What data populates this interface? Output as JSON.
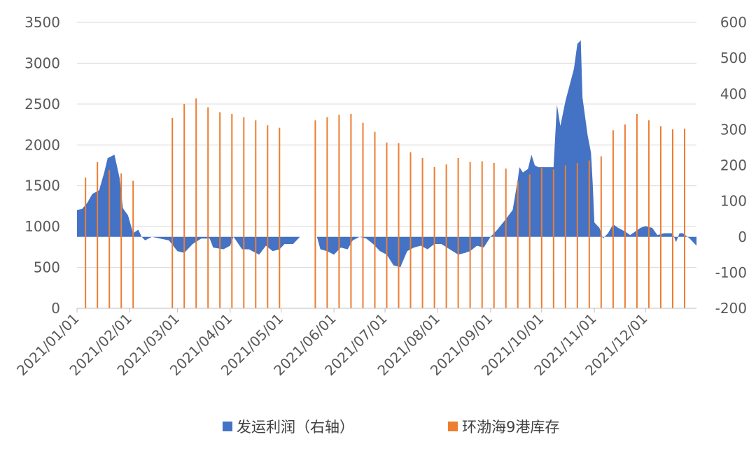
{
  "chart_data": {
    "type": "bar",
    "title": "",
    "xlabel": "",
    "ylabel": "",
    "grid": true,
    "legend_position": "bottom",
    "x_range": [
      "2021-01-01",
      "2021-12-31"
    ],
    "left_axis": {
      "ylim": [
        0,
        3500
      ],
      "ticks": [
        "0",
        "500",
        "1000",
        "1500",
        "2000",
        "2500",
        "3000",
        "3500"
      ]
    },
    "right_axis": {
      "ylim": [
        -200,
        600
      ],
      "ticks": [
        "-200",
        "-100",
        "0",
        "100",
        "200",
        "300",
        "400",
        "500",
        "600"
      ]
    },
    "x_ticks": [
      "2021/01/01",
      "2021/02/01",
      "2021/03/01",
      "2021/04/01",
      "2021/05/01",
      "2021/06/01",
      "2021/07/01",
      "2021/08/01",
      "2021/09/01",
      "2021/10/01",
      "2021/11/01",
      "2021/12/01"
    ],
    "series": [
      {
        "name": "发运利润（右轴）",
        "type": "area",
        "axis": "right",
        "color": "#4472C4",
        "points": [
          [
            "2021-01-01",
            75
          ],
          [
            "2021-01-04",
            78
          ],
          [
            "2021-01-07",
            95
          ],
          [
            "2021-01-10",
            120
          ],
          [
            "2021-01-14",
            130
          ],
          [
            "2021-01-17",
            180
          ],
          [
            "2021-01-19",
            220
          ],
          [
            "2021-01-23",
            230
          ],
          [
            "2021-01-26",
            165
          ],
          [
            "2021-01-28",
            80
          ],
          [
            "2021-01-31",
            60
          ],
          [
            "2021-02-03",
            10
          ],
          [
            "2021-02-06",
            20
          ],
          [
            "2021-02-08",
            0
          ],
          [
            "2021-02-10",
            -10
          ],
          [
            "2021-02-12",
            -5
          ],
          [
            "2021-02-14",
            0
          ],
          [
            "2021-02-24",
            -10
          ],
          [
            "2021-03-01",
            -40
          ],
          [
            "2021-03-05",
            -45
          ],
          [
            "2021-03-10",
            -20
          ],
          [
            "2021-03-15",
            -5
          ],
          [
            "2021-03-20",
            -5
          ],
          [
            "2021-03-22",
            -30
          ],
          [
            "2021-03-28",
            -35
          ],
          [
            "2021-04-01",
            -25
          ],
          [
            "2021-04-03",
            0
          ],
          [
            "2021-04-08",
            -35
          ],
          [
            "2021-04-12",
            -35
          ],
          [
            "2021-04-18",
            -50
          ],
          [
            "2021-04-22",
            -25
          ],
          [
            "2021-04-26",
            -40
          ],
          [
            "2021-04-30",
            -35
          ],
          [
            "2021-05-03",
            -20
          ],
          [
            "2021-05-08",
            -20
          ],
          [
            "2021-05-12",
            0
          ],
          [
            "2021-05-22",
            0
          ],
          [
            "2021-05-24",
            -35
          ],
          [
            "2021-05-28",
            -40
          ],
          [
            "2021-06-01",
            -50
          ],
          [
            "2021-06-05",
            -30
          ],
          [
            "2021-06-09",
            -35
          ],
          [
            "2021-06-12",
            -10
          ],
          [
            "2021-06-16",
            0
          ],
          [
            "2021-06-20",
            -5
          ],
          [
            "2021-06-24",
            -20
          ],
          [
            "2021-06-28",
            -40
          ],
          [
            "2021-07-02",
            -50
          ],
          [
            "2021-07-06",
            -80
          ],
          [
            "2021-07-10",
            -85
          ],
          [
            "2021-07-14",
            -40
          ],
          [
            "2021-07-18",
            -30
          ],
          [
            "2021-07-22",
            -25
          ],
          [
            "2021-07-26",
            -35
          ],
          [
            "2021-07-30",
            -20
          ],
          [
            "2021-08-03",
            -20
          ],
          [
            "2021-08-08",
            -35
          ],
          [
            "2021-08-13",
            -50
          ],
          [
            "2021-08-17",
            -45
          ],
          [
            "2021-08-20",
            -40
          ],
          [
            "2021-08-24",
            -25
          ],
          [
            "2021-08-28",
            -30
          ],
          [
            "2021-09-01",
            0
          ],
          [
            "2021-09-05",
            20
          ],
          [
            "2021-09-10",
            50
          ],
          [
            "2021-09-14",
            75
          ],
          [
            "2021-09-17",
            160
          ],
          [
            "2021-09-18",
            195
          ],
          [
            "2021-09-20",
            180
          ],
          [
            "2021-09-23",
            190
          ],
          [
            "2021-09-25",
            230
          ],
          [
            "2021-09-27",
            200
          ],
          [
            "2021-09-29",
            195
          ],
          [
            "2021-10-01",
            195
          ],
          [
            "2021-10-08",
            195
          ],
          [
            "2021-10-10",
            370
          ],
          [
            "2021-10-12",
            310
          ],
          [
            "2021-10-15",
            380
          ],
          [
            "2021-10-20",
            470
          ],
          [
            "2021-10-22",
            540
          ],
          [
            "2021-10-24",
            550
          ],
          [
            "2021-10-25",
            390
          ],
          [
            "2021-10-28",
            285
          ],
          [
            "2021-10-30",
            235
          ],
          [
            "2021-10-31",
            150
          ],
          [
            "2021-11-01",
            40
          ],
          [
            "2021-11-04",
            25
          ],
          [
            "2021-11-06",
            -5
          ],
          [
            "2021-11-09",
            10
          ],
          [
            "2021-11-12",
            35
          ],
          [
            "2021-11-15",
            25
          ],
          [
            "2021-11-19",
            15
          ],
          [
            "2021-11-22",
            5
          ],
          [
            "2021-11-25",
            15
          ],
          [
            "2021-11-28",
            25
          ],
          [
            "2021-12-01",
            30
          ],
          [
            "2021-12-05",
            25
          ],
          [
            "2021-12-08",
            5
          ],
          [
            "2021-12-12",
            10
          ],
          [
            "2021-12-17",
            10
          ],
          [
            "2021-12-19",
            -15
          ],
          [
            "2021-12-21",
            10
          ],
          [
            "2021-12-23",
            10
          ],
          [
            "2021-12-27",
            -5
          ],
          [
            "2021-12-31",
            -25
          ]
        ]
      },
      {
        "name": "环渤海9港库存",
        "type": "bar",
        "axis": "left",
        "color": "#ED7D31",
        "points": [
          [
            "2021-01-06",
            1600
          ],
          [
            "2021-01-13",
            1790
          ],
          [
            "2021-01-20",
            1690
          ],
          [
            "2021-01-27",
            1650
          ],
          [
            "2021-02-03",
            1560
          ],
          [
            "2021-02-26",
            2330
          ],
          [
            "2021-03-05",
            2500
          ],
          [
            "2021-03-12",
            2570
          ],
          [
            "2021-03-19",
            2460
          ],
          [
            "2021-03-26",
            2400
          ],
          [
            "2021-04-02",
            2380
          ],
          [
            "2021-04-09",
            2340
          ],
          [
            "2021-04-16",
            2300
          ],
          [
            "2021-04-23",
            2240
          ],
          [
            "2021-04-30",
            2210
          ],
          [
            "2021-05-21",
            2300
          ],
          [
            "2021-05-28",
            2340
          ],
          [
            "2021-06-04",
            2370
          ],
          [
            "2021-06-11",
            2380
          ],
          [
            "2021-06-18",
            2270
          ],
          [
            "2021-06-25",
            2160
          ],
          [
            "2021-07-02",
            2030
          ],
          [
            "2021-07-09",
            2020
          ],
          [
            "2021-07-16",
            1910
          ],
          [
            "2021-07-23",
            1840
          ],
          [
            "2021-07-30",
            1730
          ],
          [
            "2021-08-06",
            1760
          ],
          [
            "2021-08-13",
            1840
          ],
          [
            "2021-08-20",
            1790
          ],
          [
            "2021-08-27",
            1800
          ],
          [
            "2021-09-03",
            1780
          ],
          [
            "2021-09-10",
            1710
          ],
          [
            "2021-09-17",
            1550
          ],
          [
            "2021-09-24",
            1640
          ],
          [
            "2021-10-01",
            1720
          ],
          [
            "2021-10-08",
            1700
          ],
          [
            "2021-10-15",
            1750
          ],
          [
            "2021-10-22",
            1780
          ],
          [
            "2021-10-29",
            1810
          ],
          [
            "2021-11-05",
            1860
          ],
          [
            "2021-11-12",
            2180
          ],
          [
            "2021-11-19",
            2250
          ],
          [
            "2021-11-26",
            2380
          ],
          [
            "2021-12-03",
            2300
          ],
          [
            "2021-12-10",
            2230
          ],
          [
            "2021-12-17",
            2190
          ],
          [
            "2021-12-24",
            2200
          ]
        ]
      }
    ]
  }
}
